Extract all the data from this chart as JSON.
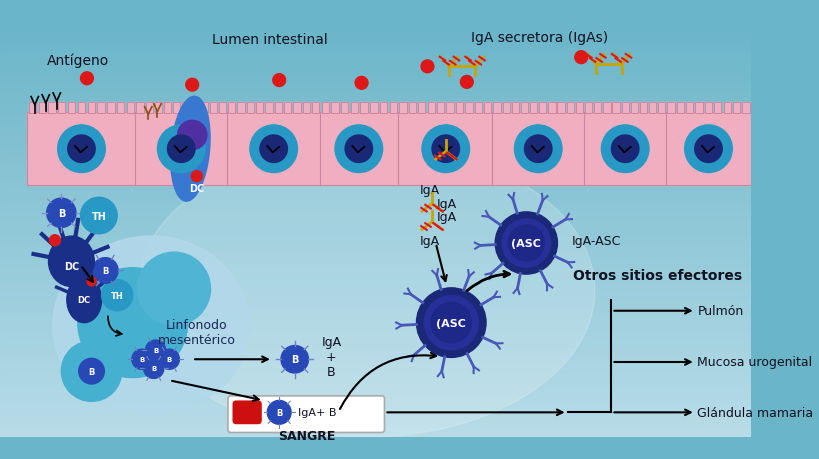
{
  "bg_top_color": "#6ab5c8",
  "bg_bottom_color": "#b8dce8",
  "wall_color": "#f0afc0",
  "wall_stroke": "#c888a0",
  "cell_dark_blue": "#1a2878",
  "cell_mid_blue": "#2848b5",
  "cell_teal": "#2898c5",
  "cell_light_teal": "#45b0d0",
  "cell_purple": "#503898",
  "red": "#dd1818",
  "yellow": "#c8a500",
  "text_dark": "#111122",
  "lumen_label": "Lumen intestinal",
  "iga_sec_label": "IgA secretora (IgAs)",
  "antigeno_label": "Antígeno",
  "linfonodo_label": "Linfonodo\nmesentérico",
  "iga_b_label": "IgA\n+\nB",
  "iga_plus_b_label": "IgA+ B",
  "sangre_label": "SANGRE",
  "otros_label": "Otros sitios efectores",
  "pulmon_label": "Pulmón",
  "mucosa_label": "Mucosa urogenital",
  "glandula_label": "Glándula mamaria",
  "iga_label": "IgA",
  "iga_asc_label": "IgA-ASC",
  "asc_text": "(ASC"
}
